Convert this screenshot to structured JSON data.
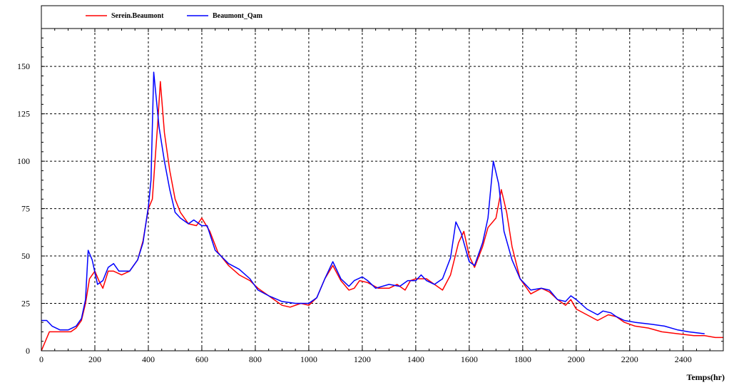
{
  "chart_data": {
    "type": "line",
    "title": "",
    "xlabel": "Temps(hr)",
    "ylabel": "",
    "xlim": [
      0,
      2550
    ],
    "ylim": [
      0,
      170
    ],
    "x_ticks": [
      0,
      200,
      400,
      600,
      800,
      1000,
      1200,
      1400,
      1600,
      1800,
      2000,
      2200,
      2400
    ],
    "y_ticks": [
      0,
      25,
      50,
      75,
      100,
      125,
      150
    ],
    "grid": true,
    "legend_position": "top",
    "series": [
      {
        "name": "Serein.Beaumont",
        "color": "#ff0000",
        "points": [
          [
            0,
            0
          ],
          [
            30,
            10
          ],
          [
            60,
            10
          ],
          [
            90,
            10
          ],
          [
            110,
            10
          ],
          [
            130,
            12
          ],
          [
            150,
            16
          ],
          [
            165,
            25
          ],
          [
            180,
            38
          ],
          [
            200,
            42
          ],
          [
            215,
            37
          ],
          [
            230,
            33
          ],
          [
            250,
            42
          ],
          [
            270,
            42
          ],
          [
            300,
            40
          ],
          [
            330,
            42
          ],
          [
            360,
            48
          ],
          [
            380,
            58
          ],
          [
            400,
            75
          ],
          [
            415,
            80
          ],
          [
            425,
            100
          ],
          [
            435,
            120
          ],
          [
            445,
            142
          ],
          [
            460,
            115
          ],
          [
            480,
            95
          ],
          [
            500,
            80
          ],
          [
            520,
            73
          ],
          [
            550,
            67
          ],
          [
            580,
            66
          ],
          [
            600,
            70
          ],
          [
            630,
            63
          ],
          [
            660,
            52
          ],
          [
            700,
            45
          ],
          [
            740,
            40
          ],
          [
            780,
            37
          ],
          [
            810,
            33
          ],
          [
            850,
            29
          ],
          [
            900,
            24
          ],
          [
            930,
            23
          ],
          [
            970,
            25
          ],
          [
            1000,
            24
          ],
          [
            1030,
            28
          ],
          [
            1060,
            38
          ],
          [
            1090,
            45
          ],
          [
            1120,
            37
          ],
          [
            1150,
            32
          ],
          [
            1170,
            33
          ],
          [
            1190,
            37
          ],
          [
            1220,
            36
          ],
          [
            1260,
            33
          ],
          [
            1300,
            33
          ],
          [
            1330,
            35
          ],
          [
            1360,
            32
          ],
          [
            1380,
            37
          ],
          [
            1400,
            38
          ],
          [
            1440,
            38
          ],
          [
            1470,
            35
          ],
          [
            1500,
            32
          ],
          [
            1530,
            40
          ],
          [
            1560,
            57
          ],
          [
            1580,
            63
          ],
          [
            1600,
            50
          ],
          [
            1620,
            44
          ],
          [
            1650,
            55
          ],
          [
            1670,
            65
          ],
          [
            1700,
            70
          ],
          [
            1720,
            85
          ],
          [
            1740,
            73
          ],
          [
            1760,
            55
          ],
          [
            1790,
            38
          ],
          [
            1830,
            30
          ],
          [
            1870,
            33
          ],
          [
            1900,
            31
          ],
          [
            1930,
            27
          ],
          [
            1960,
            24
          ],
          [
            1980,
            27
          ],
          [
            2000,
            22
          ],
          [
            2040,
            19
          ],
          [
            2080,
            16
          ],
          [
            2120,
            19
          ],
          [
            2150,
            18
          ],
          [
            2180,
            15
          ],
          [
            2220,
            13
          ],
          [
            2270,
            12
          ],
          [
            2320,
            10
          ],
          [
            2380,
            9
          ],
          [
            2440,
            8
          ],
          [
            2480,
            8
          ],
          [
            2520,
            7
          ],
          [
            2550,
            7
          ]
        ]
      },
      {
        "name": "Beaumont_Qam",
        "color": "#0000ff",
        "points": [
          [
            0,
            16
          ],
          [
            20,
            16
          ],
          [
            40,
            13
          ],
          [
            70,
            11
          ],
          [
            100,
            11
          ],
          [
            130,
            13
          ],
          [
            150,
            17
          ],
          [
            165,
            27
          ],
          [
            175,
            53
          ],
          [
            190,
            48
          ],
          [
            210,
            35
          ],
          [
            230,
            37
          ],
          [
            250,
            44
          ],
          [
            270,
            46
          ],
          [
            290,
            42
          ],
          [
            330,
            42
          ],
          [
            360,
            48
          ],
          [
            380,
            57
          ],
          [
            400,
            76
          ],
          [
            410,
            90
          ],
          [
            420,
            147
          ],
          [
            440,
            118
          ],
          [
            460,
            100
          ],
          [
            480,
            85
          ],
          [
            500,
            73
          ],
          [
            520,
            70
          ],
          [
            550,
            67
          ],
          [
            570,
            69
          ],
          [
            600,
            66
          ],
          [
            620,
            66
          ],
          [
            650,
            53
          ],
          [
            700,
            46
          ],
          [
            740,
            43
          ],
          [
            780,
            38
          ],
          [
            810,
            32
          ],
          [
            850,
            29
          ],
          [
            900,
            26
          ],
          [
            950,
            25
          ],
          [
            1000,
            25
          ],
          [
            1030,
            28
          ],
          [
            1060,
            38
          ],
          [
            1090,
            47
          ],
          [
            1120,
            38
          ],
          [
            1150,
            34
          ],
          [
            1170,
            37
          ],
          [
            1200,
            39
          ],
          [
            1220,
            37
          ],
          [
            1250,
            33
          ],
          [
            1300,
            35
          ],
          [
            1340,
            34
          ],
          [
            1370,
            37
          ],
          [
            1400,
            37
          ],
          [
            1420,
            40
          ],
          [
            1440,
            37
          ],
          [
            1470,
            35
          ],
          [
            1500,
            38
          ],
          [
            1530,
            49
          ],
          [
            1550,
            68
          ],
          [
            1570,
            62
          ],
          [
            1600,
            47
          ],
          [
            1620,
            45
          ],
          [
            1650,
            57
          ],
          [
            1670,
            70
          ],
          [
            1690,
            100
          ],
          [
            1710,
            88
          ],
          [
            1730,
            63
          ],
          [
            1760,
            48
          ],
          [
            1790,
            38
          ],
          [
            1830,
            32
          ],
          [
            1870,
            33
          ],
          [
            1900,
            32
          ],
          [
            1930,
            27
          ],
          [
            1960,
            26
          ],
          [
            1980,
            29
          ],
          [
            2000,
            27
          ],
          [
            2040,
            22
          ],
          [
            2080,
            19
          ],
          [
            2100,
            21
          ],
          [
            2130,
            20
          ],
          [
            2150,
            18
          ],
          [
            2180,
            16
          ],
          [
            2220,
            15
          ],
          [
            2280,
            14
          ],
          [
            2330,
            13
          ],
          [
            2380,
            11
          ],
          [
            2420,
            10
          ],
          [
            2480,
            9
          ]
        ]
      }
    ]
  }
}
